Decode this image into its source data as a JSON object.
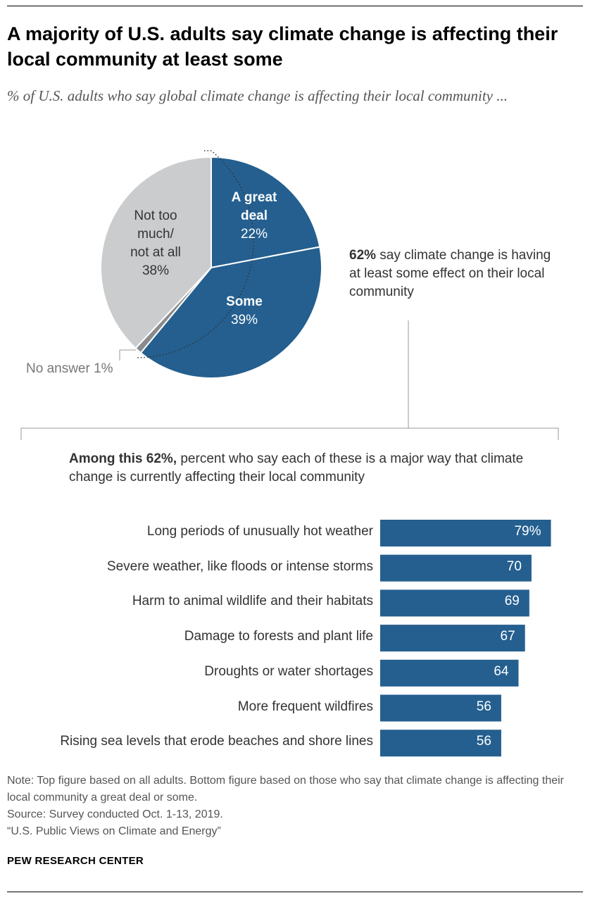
{
  "title": "A majority of U.S. adults say climate change is affecting their local community at least some",
  "subtitle": "% of U.S. adults who say global climate change is affecting their local community ...",
  "callout": {
    "bold": "62%",
    "text": " say climate change is having at least some effect on their local community"
  },
  "among": {
    "bold": "Among this 62%,",
    "text": " percent who say each of these is a major way that climate change is currently affecting their local community"
  },
  "colors": {
    "blue": "#245f8f",
    "gray": "#cbcccd",
    "dark_gray": "#8a8b8c"
  },
  "chart_data": [
    {
      "type": "pie",
      "slices": [
        {
          "label_line1": "A great",
          "label_line2": "deal",
          "value": 22,
          "value_label": "22%"
        },
        {
          "label_line1": "Some",
          "label_line2": "",
          "value": 39,
          "value_label": "39%"
        },
        {
          "label": "No answer 1%",
          "value": 1
        },
        {
          "label_line1": "Not too",
          "label_line2": "much/",
          "label_line3": "not at all",
          "value": 38,
          "value_label": "38%"
        }
      ]
    },
    {
      "type": "bar",
      "orientation": "horizontal",
      "categories": [
        "Long periods of unusually hot weather",
        "Severe weather, like floods or intense storms",
        "Harm to animal wildlife and their habitats",
        "Damage to forests and plant life",
        "Droughts or water shortages",
        "More frequent wildfires",
        "Rising sea levels that erode beaches and shore lines"
      ],
      "values": [
        79,
        70,
        69,
        67,
        64,
        56,
        56
      ],
      "value_labels": [
        "79%",
        "70",
        "69",
        "67",
        "64",
        "56",
        "56"
      ]
    }
  ],
  "notes": [
    "Note: Top figure based on all adults. Bottom figure based on those who say that climate change is affecting their local community a great deal or some.",
    "Source: Survey conducted Oct. 1-13, 2019.",
    "“U.S. Public Views on Climate and Energy”"
  ],
  "brand": "PEW RESEARCH CENTER"
}
